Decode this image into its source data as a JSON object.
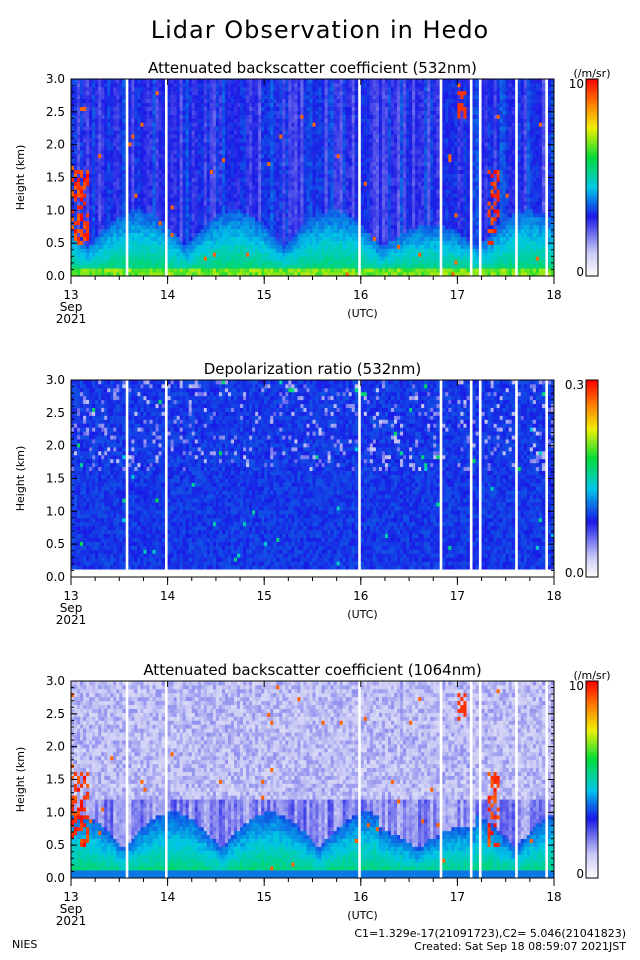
{
  "title": "Lidar Observation in Hedo",
  "chart_data": [
    {
      "type": "heatmap",
      "title": "Attenuated backscatter coefficient (532nm)",
      "ylabel": "Height (km)",
      "xlabel": "(UTC)",
      "x_ticks": [
        "13",
        "14",
        "15",
        "16",
        "17",
        "18"
      ],
      "x_sublabel": [
        "Sep",
        "2021"
      ],
      "y_ticks": [
        "0.0",
        "0.5",
        "1.0",
        "1.5",
        "2.0",
        "2.5",
        "3.0"
      ],
      "xlim": [
        13,
        18
      ],
      "ylim": [
        0,
        3
      ],
      "colorbar": {
        "max_label": "10",
        "min_label": "0",
        "unit": "(/m/sr)"
      },
      "palette": "backscatter"
    },
    {
      "type": "heatmap",
      "title": "Depolarization ratio (532nm)",
      "ylabel": "Height (km)",
      "xlabel": "(UTC)",
      "x_ticks": [
        "13",
        "14",
        "15",
        "16",
        "17",
        "18"
      ],
      "x_sublabel": [
        "Sep",
        "2021"
      ],
      "y_ticks": [
        "0.0",
        "0.5",
        "1.0",
        "1.5",
        "2.0",
        "2.5",
        "3.0"
      ],
      "xlim": [
        13,
        18
      ],
      "ylim": [
        0,
        3
      ],
      "colorbar": {
        "max_label": "0.3",
        "min_label": "0.0",
        "unit": ""
      },
      "palette": "depolarization"
    },
    {
      "type": "heatmap",
      "title": "Attenuated backscatter coefficient (1064nm)",
      "ylabel": "Height (km)",
      "xlabel": "(UTC)",
      "x_ticks": [
        "13",
        "14",
        "15",
        "16",
        "17",
        "18"
      ],
      "x_sublabel": [
        "Sep",
        "2021"
      ],
      "y_ticks": [
        "0.0",
        "0.5",
        "1.0",
        "1.5",
        "2.0",
        "2.5",
        "3.0"
      ],
      "xlim": [
        13,
        18
      ],
      "ylim": [
        0,
        3
      ],
      "colorbar": {
        "max_label": "10",
        "min_label": "0",
        "unit": "(/m/sr)"
      },
      "palette": "backscatter1064"
    }
  ],
  "footer": {
    "org": "NIES",
    "constants": "C1=1.329e-17(21091723),C2= 5.046(21041823)",
    "created": "Created: Sat Sep 18 08:59:07 2021JST"
  }
}
